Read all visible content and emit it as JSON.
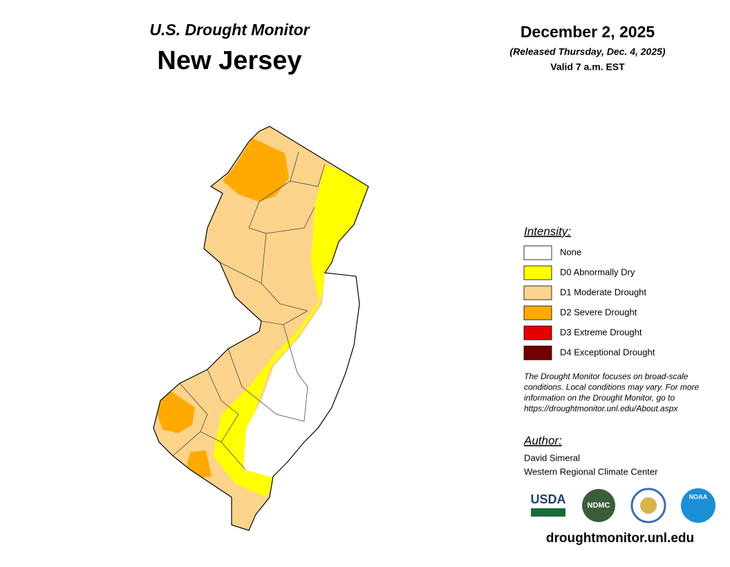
{
  "header": {
    "title": "U.S. Drought Monitor",
    "region": "New Jersey",
    "date": "December 2, 2025",
    "released": "(Released Thursday, Dec. 4, 2025)",
    "valid": "Valid 7 a.m. EST"
  },
  "legend": {
    "title": "Intensity:",
    "items": [
      {
        "label": "None",
        "color": "#ffffff"
      },
      {
        "label": "D0 Abnormally Dry",
        "color": "#ffff00"
      },
      {
        "label": "D1 Moderate Drought",
        "color": "#fcd38a"
      },
      {
        "label": "D2 Severe Drought",
        "color": "#ffaa00"
      },
      {
        "label": "D3 Extreme Drought",
        "color": "#e60000"
      },
      {
        "label": "D4 Exceptional Drought",
        "color": "#730000"
      }
    ]
  },
  "note": [
    "The Drought Monitor focuses on broad-scale",
    "conditions. Local conditions may vary. For more",
    "information on the Drought Monitor, go to",
    "https://droughtmonitor.unl.edu/About.aspx"
  ],
  "author": {
    "label": "Author:",
    "lines": [
      "David Simeral",
      "Western Regional Climate Center"
    ]
  },
  "logos": [
    "USDA",
    "NDMC",
    "NOAA"
  ],
  "url": "droughtmonitor.unl.edu"
}
